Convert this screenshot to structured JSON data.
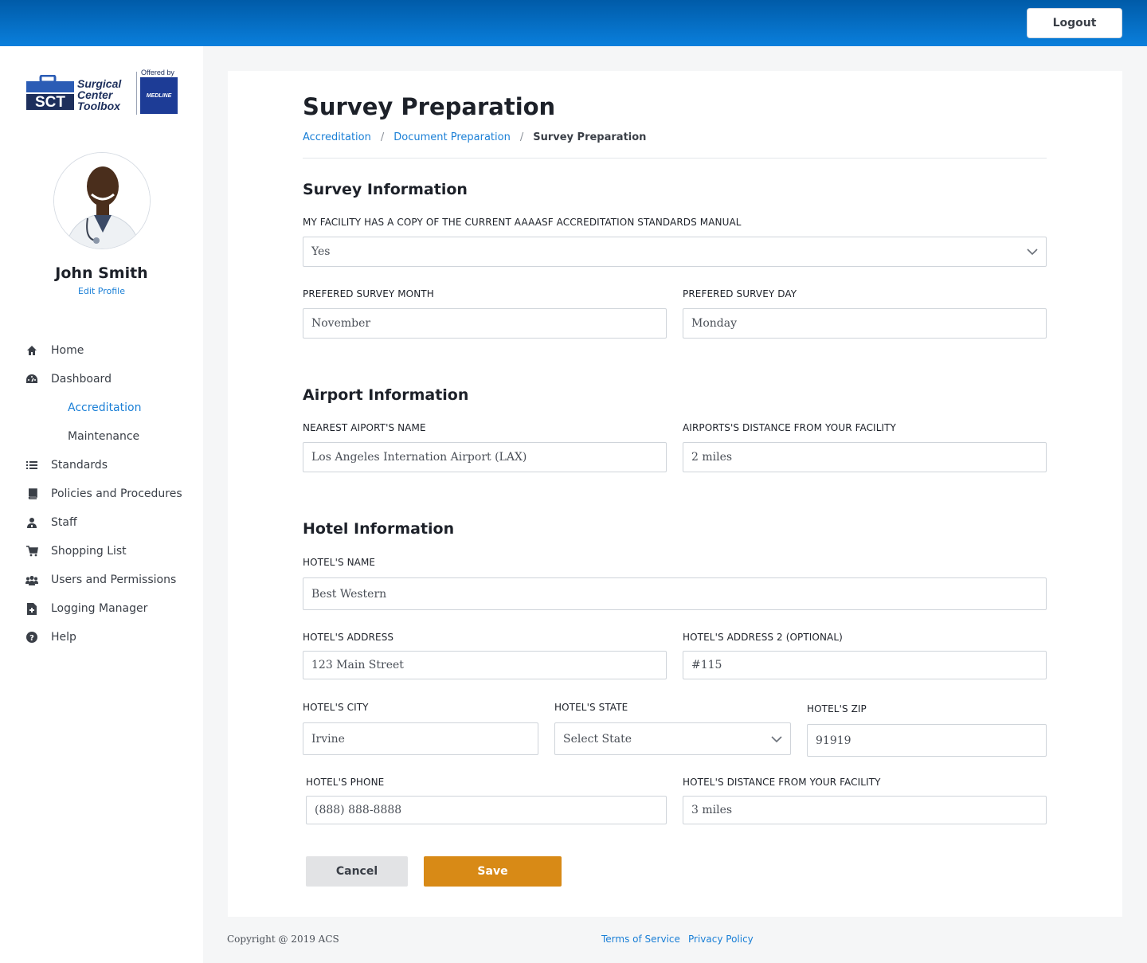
{
  "header": {
    "logout_label": "Logout"
  },
  "brand": {
    "logo_line1": "Surgical",
    "logo_line2": "Center",
    "logo_line3": "Toolbox",
    "offered_by": "Offered by",
    "partner": "MEDLINE"
  },
  "profile": {
    "name": "John Smith",
    "edit_label": "Edit Profile"
  },
  "nav": {
    "home": "Home",
    "dashboard": "Dashboard",
    "accreditation": "Accreditation",
    "maintenance": "Maintenance",
    "standards": "Standards",
    "policies": "Policies and Procedures",
    "staff": "Staff",
    "shopping": "Shopping List",
    "users": "Users and Permissions",
    "logging": "Logging Manager",
    "help": "Help"
  },
  "page": {
    "title": "Survey Preparation",
    "breadcrumb": [
      "Accreditation",
      "Document Preparation",
      "Survey Preparation"
    ]
  },
  "survey": {
    "section_title": "Survey Information",
    "manual_label": "MY FACILITY HAS A COPY OF THE CURRENT AAAASF ACCREDITATION STANDARDS MANUAL",
    "manual_value": "Yes",
    "month_label": "PREFERED SURVEY MONTH",
    "month_value": "November",
    "day_label": "PREFERED SURVEY DAY",
    "day_value": "Monday"
  },
  "airport": {
    "section_title": "Airport Information",
    "name_label": "NEAREST AIPORT'S NAME",
    "name_value": "Los Angeles Internation Airport (LAX)",
    "distance_label": "AIRPORTS'S DISTANCE FROM YOUR FACILITY",
    "distance_value": "2 miles"
  },
  "hotel": {
    "section_title": "Hotel Information",
    "name_label": "HOTEL'S NAME",
    "name_value": "Best Western",
    "address_label": "HOTEL'S ADDRESS",
    "address_value": "123 Main Street",
    "address2_label": "HOTEL'S ADDRESS 2 (OPTIONAL)",
    "address2_value": "#115",
    "city_label": "HOTEL'S CITY",
    "city_value": "Irvine",
    "state_label": "HOTEL'S STATE",
    "state_value": "Select State",
    "zip_label": "HOTEL'S ZIP",
    "zip_value": "91919",
    "phone_label": "HOTEL'S PHONE",
    "phone_value": "(888) 888-8888",
    "distance_label": "HOTEL'S DISTANCE FROM YOUR FACILITY",
    "distance_value": "3 miles"
  },
  "actions": {
    "cancel_label": "Cancel",
    "save_label": "Save"
  },
  "footer": {
    "copyright": "Copyright @ 2019 ACS",
    "terms": "Terms of Service",
    "privacy": "Privacy Policy"
  },
  "colors": {
    "accent": "#1a7fd6",
    "save": "#d88a16",
    "header": "#0a7fdc"
  }
}
